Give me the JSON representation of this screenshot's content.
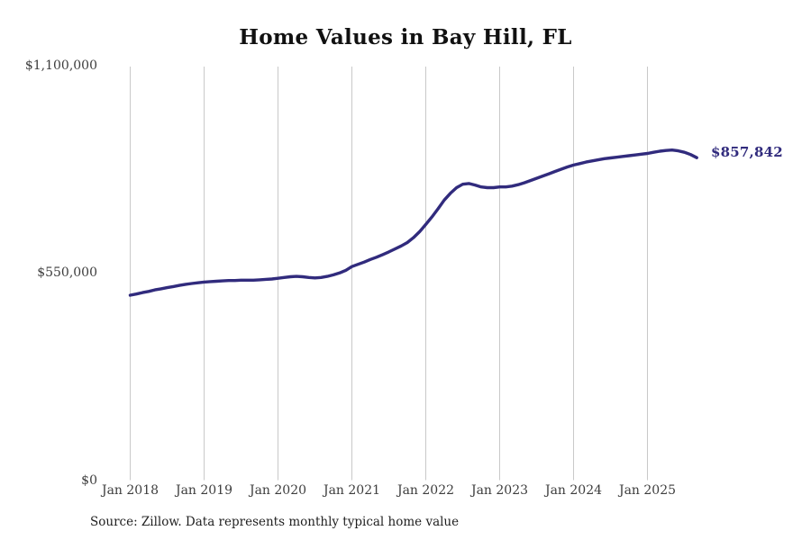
{
  "title": "Home Values in Bay Hill, FL",
  "source_note": "Source: Zillow. Data represents monthly typical home value",
  "end_label": "$857,842",
  "colors": {
    "line": "#312b7d",
    "end_label": "#312b7d",
    "grid": "#c9c9c9",
    "title": "#111111",
    "axis_label": "#3d3d3d",
    "source": "#1f1f1f",
    "background": "#ffffff"
  },
  "chart_data": {
    "type": "line",
    "title": "Home Values in Bay Hill, FL",
    "xlabel": "",
    "ylabel": "",
    "ylim": [
      0,
      1100000
    ],
    "y_tick_labels": [
      "$0",
      "$550,000",
      "$1,100,000"
    ],
    "x_tick_labels": [
      "Jan 2018",
      "Jan 2019",
      "Jan 2020",
      "Jan 2021",
      "Jan 2022",
      "Jan 2023",
      "Jan 2024",
      "Jan 2025"
    ],
    "grid": "vertical-only",
    "legend": "none",
    "start_month": "2018-01",
    "end_month": "2025-09",
    "last_value": 857842,
    "series": [
      {
        "name": "Typical home value",
        "monthly_values": [
          492000,
          495000,
          499000,
          502000,
          506000,
          509000,
          512000,
          515000,
          518000,
          521000,
          523000,
          525000,
          527000,
          528000,
          529000,
          530000,
          531000,
          531000,
          532000,
          532000,
          532000,
          533000,
          534000,
          535000,
          537000,
          539000,
          541000,
          542000,
          541000,
          539000,
          538000,
          539000,
          542000,
          546000,
          551000,
          558000,
          568000,
          574000,
          580000,
          587000,
          593000,
          600000,
          607000,
          615000,
          623000,
          632000,
          645000,
          661000,
          680000,
          700000,
          722000,
          745000,
          763000,
          778000,
          787000,
          789000,
          785000,
          780000,
          778000,
          778000,
          780000,
          780000,
          782000,
          786000,
          791000,
          797000,
          803000,
          809000,
          815000,
          821000,
          827000,
          833000,
          838000,
          842000,
          846000,
          849000,
          852000,
          855000,
          857000,
          859000,
          861000,
          863000,
          865000,
          867000,
          869000,
          872000,
          875000,
          877000,
          878000,
          876000,
          872000,
          866000,
          857842
        ]
      }
    ]
  }
}
